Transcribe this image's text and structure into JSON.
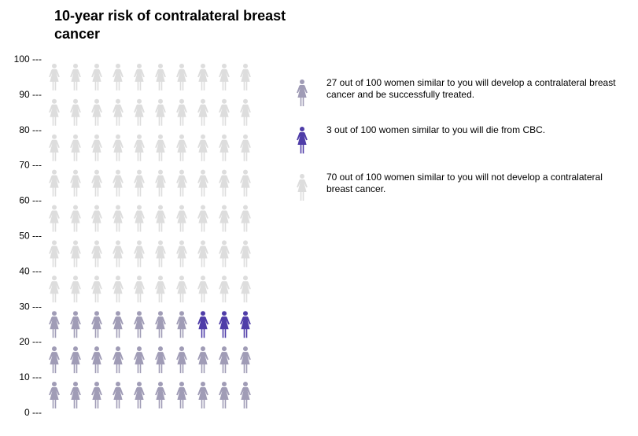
{
  "chart_data": {
    "type": "icon-array",
    "title": "10-year risk of contralateral breast cancer",
    "total": 100,
    "columns": 10,
    "ylim": [
      0,
      100
    ],
    "y_ticks": [
      "0 ---",
      "10 ---",
      "20 ---",
      "30 ---",
      "40 ---",
      "50 ---",
      "60 ---",
      "70 ---",
      "80 ---",
      "90 ---",
      "100 ---"
    ],
    "categories": [
      {
        "name": "develop-treated",
        "count": 27,
        "color": "#a09cb6",
        "legend_text": "27 out of 100 women similar to you will develop a contralateral breast cancer and be successfully treated."
      },
      {
        "name": "die-cbc",
        "count": 3,
        "color": "#4f3da8",
        "legend_text": "3 out of 100 women similar to you will die from CBC."
      },
      {
        "name": "not-develop",
        "count": 70,
        "color": "#dddddd",
        "legend_text": "70 out of 100 women similar to you will not develop a contralateral breast cancer."
      }
    ]
  }
}
